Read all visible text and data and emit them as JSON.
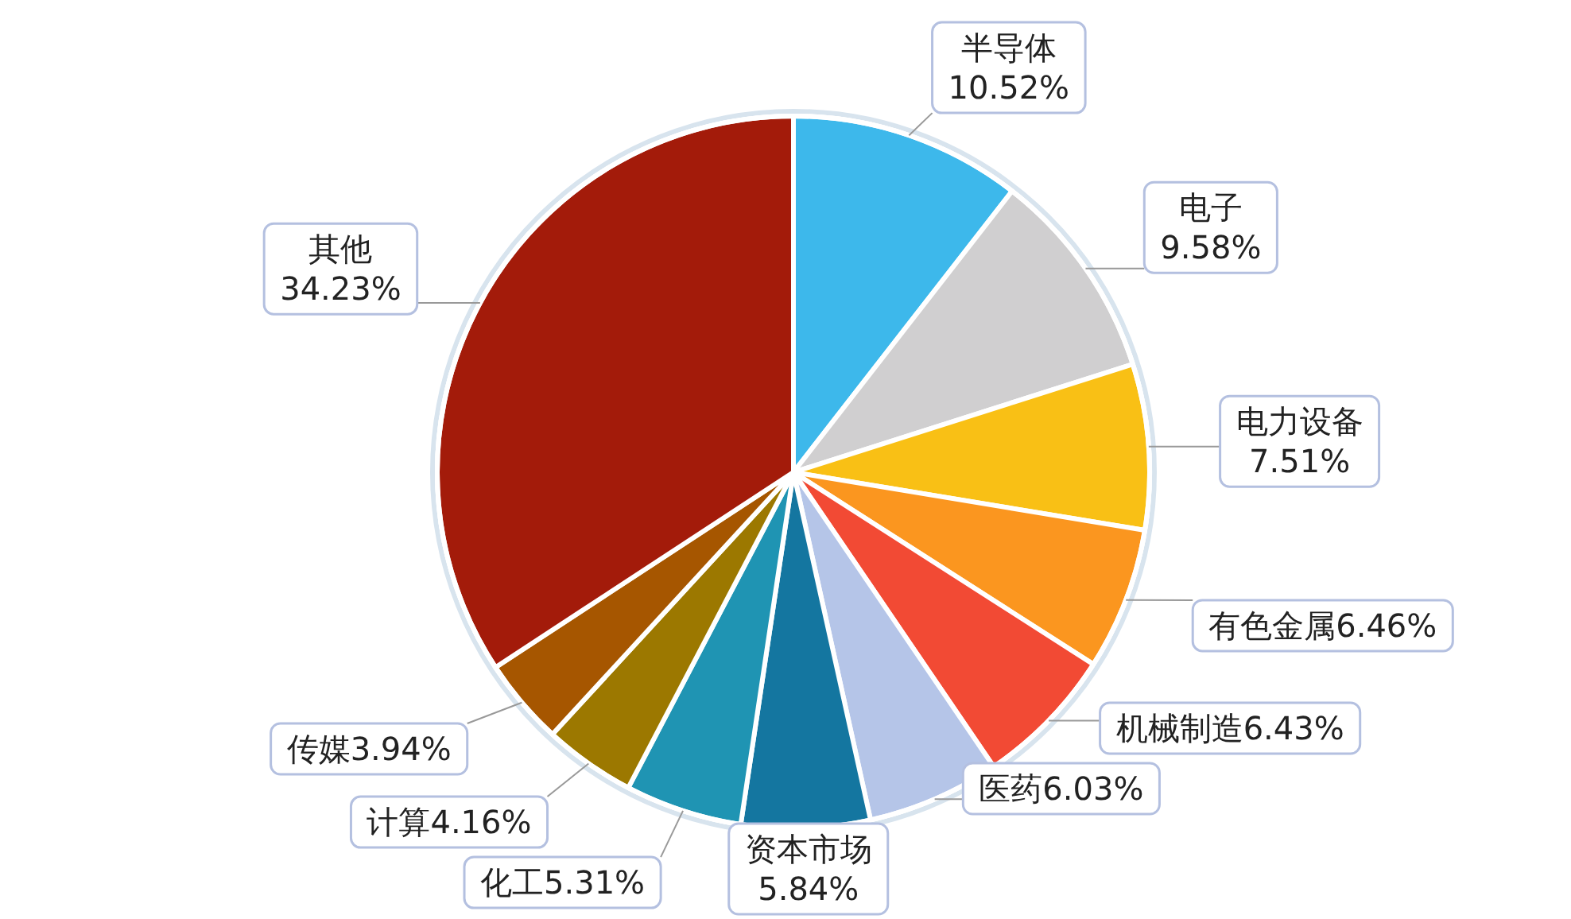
{
  "chart_data": {
    "type": "pie",
    "categories": [
      "半导体",
      "电子",
      "电力设备",
      "有色金属",
      "机械制造",
      "医药",
      "资本市场",
      "化工",
      "计算",
      "传媒",
      "其他"
    ],
    "values": [
      10.52,
      9.58,
      7.51,
      6.46,
      6.43,
      6.03,
      5.84,
      5.31,
      4.16,
      3.94,
      34.23
    ],
    "value_labels": [
      "10.52%",
      "9.58%",
      "7.51%",
      "6.46%",
      "6.43%",
      "6.03%",
      "5.84%",
      "5.31%",
      "4.16%",
      "3.94%",
      "34.23%"
    ],
    "colors": [
      "#3db8eb",
      "#d0cfd0",
      "#f9c015",
      "#fb961f",
      "#f24a34",
      "#b5c5e8",
      "#1476a0",
      "#1f94b3",
      "#9c7800",
      "#a65600",
      "#a31b0a"
    ]
  }
}
